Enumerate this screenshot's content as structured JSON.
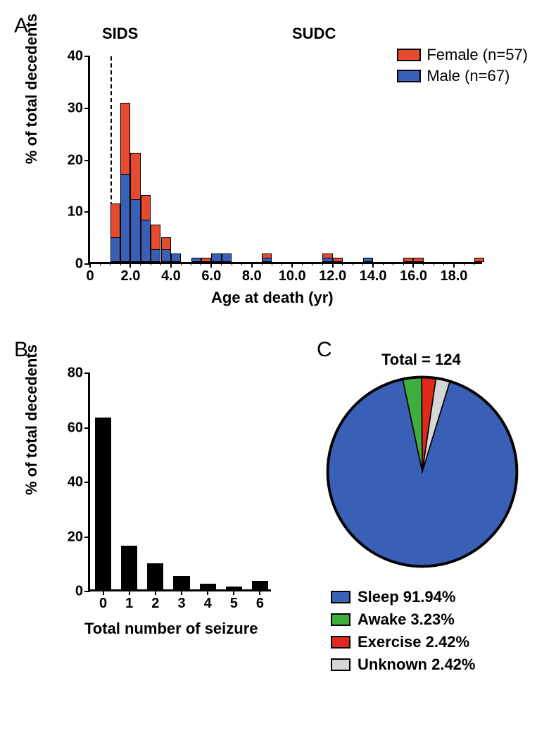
{
  "panelA": {
    "label": "A",
    "title_sids": "SIDS",
    "title_sudc": "SUDC",
    "ylabel": "% of total decedents",
    "xlabel": "Age at death (yr)",
    "ylim": [
      0,
      40
    ],
    "ytick_step": 10,
    "xlim": [
      0,
      19.5
    ],
    "xtick_labels": [
      "0",
      "2.0",
      "4.0",
      "6.0",
      "8.0",
      "10.0",
      "12.0",
      "14.0",
      "16.0",
      "18.0"
    ],
    "xtick_values": [
      0,
      2,
      4,
      6,
      8,
      10,
      12,
      14,
      16,
      18
    ],
    "divider_x": 1,
    "legend": {
      "female": {
        "label": "Female (n=57)",
        "color": "#e64b2f"
      },
      "male": {
        "label": "Male (n=67)",
        "color": "#3a5fb6"
      }
    },
    "bin_width": 0.5,
    "bars": [
      {
        "x": 1.0,
        "male": 4.8,
        "female": 6.4
      },
      {
        "x": 1.5,
        "male": 16.9,
        "female": 13.7
      },
      {
        "x": 2.0,
        "male": 12.1,
        "female": 8.9
      },
      {
        "x": 2.5,
        "male": 8.1,
        "female": 4.8
      },
      {
        "x": 3.0,
        "male": 2.4,
        "female": 4.8
      },
      {
        "x": 3.5,
        "male": 2.4,
        "female": 2.4
      },
      {
        "x": 4.0,
        "male": 1.6,
        "female": 0
      },
      {
        "x": 5.0,
        "male": 0.8,
        "female": 0
      },
      {
        "x": 5.5,
        "male": 0,
        "female": 0.8
      },
      {
        "x": 6.0,
        "male": 1.6,
        "female": 0
      },
      {
        "x": 6.5,
        "male": 1.6,
        "female": 0
      },
      {
        "x": 8.5,
        "male": 0.8,
        "female": 0.8
      },
      {
        "x": 11.5,
        "male": 0.8,
        "female": 0.8
      },
      {
        "x": 12.0,
        "male": 0,
        "female": 0.8
      },
      {
        "x": 13.5,
        "male": 0.8,
        "female": 0
      },
      {
        "x": 15.5,
        "male": 0,
        "female": 0.8
      },
      {
        "x": 16.0,
        "male": 0,
        "female": 0.8
      },
      {
        "x": 19.0,
        "male": 0,
        "female": 0.8
      }
    ]
  },
  "panelB": {
    "label": "B",
    "ylabel": "% of total decedents",
    "xlabel": "Total number of seizure",
    "ylim": [
      0,
      80
    ],
    "ytick_step": 20,
    "categories": [
      "0",
      "1",
      "2",
      "3",
      "4",
      "5",
      "6"
    ],
    "values": [
      63,
      16,
      9.5,
      5,
      2,
      1,
      3
    ],
    "bar_color": "#000000",
    "bar_width": 0.62
  },
  "panelC": {
    "label": "C",
    "title": "Total = 124",
    "slices": [
      {
        "label": "Sleep 91.94%",
        "value": 91.94,
        "color": "#3a5fb6"
      },
      {
        "label": "Awake 3.23%",
        "value": 3.23,
        "color": "#3fae3f"
      },
      {
        "label": "Exercise 2.42%",
        "value": 2.42,
        "color": "#e0291b"
      },
      {
        "label": "Unknown 2.42%",
        "value": 2.42,
        "color": "#d6d6d6"
      }
    ],
    "border_color": "#000000"
  }
}
